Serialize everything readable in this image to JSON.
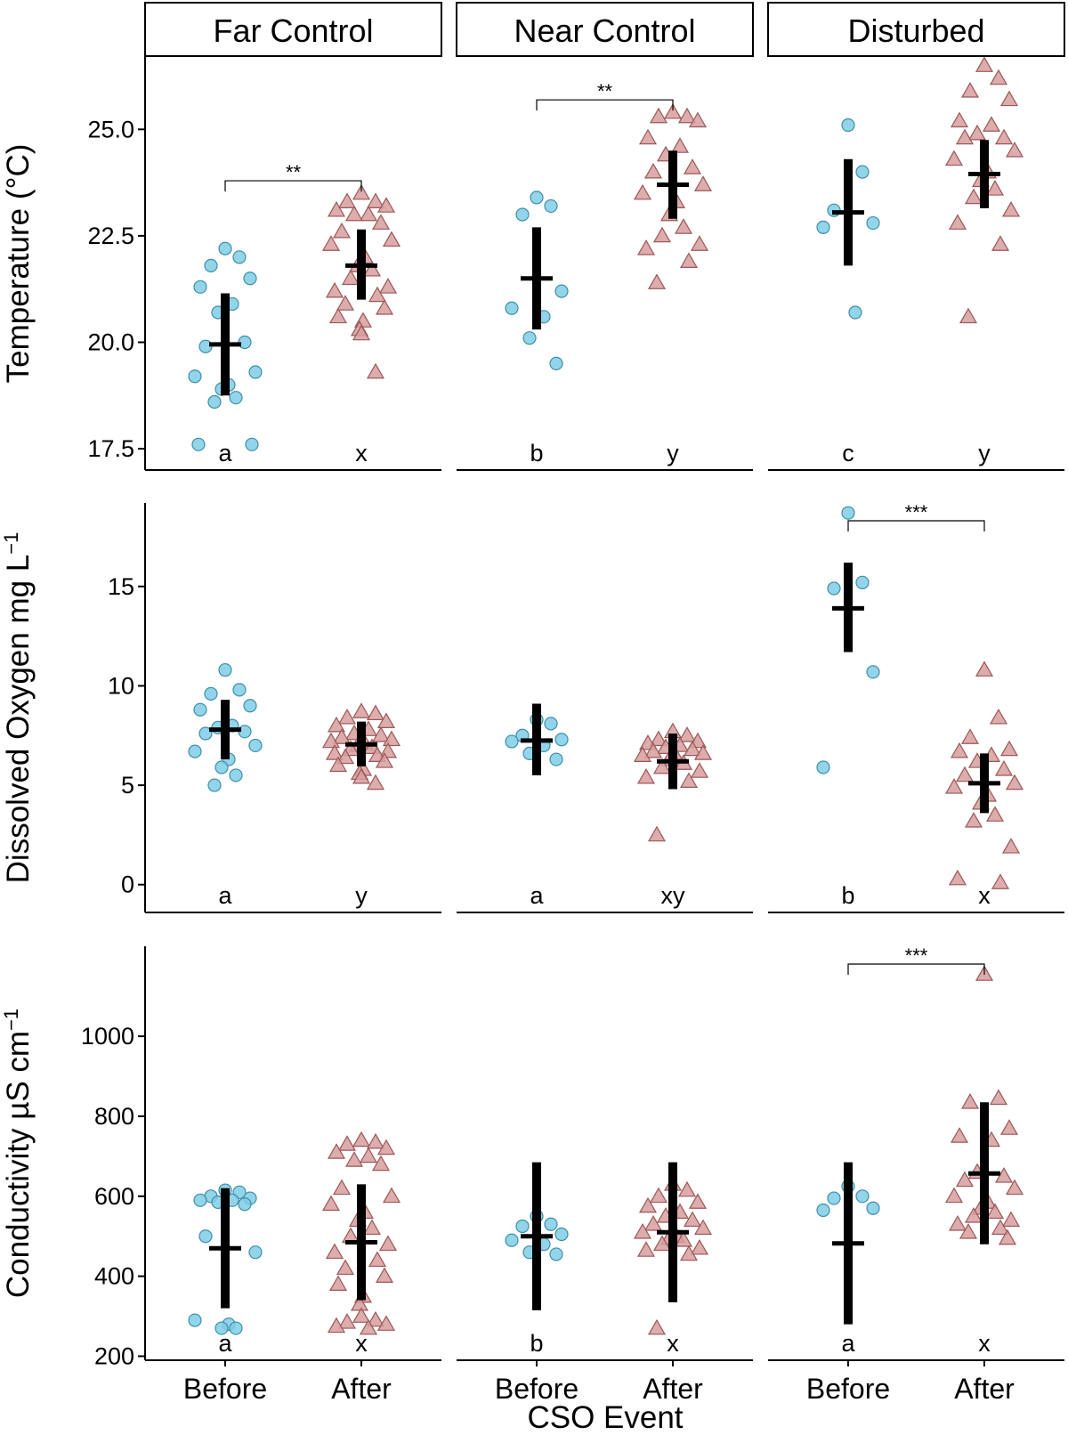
{
  "chart_data": {
    "type": "scatter",
    "xlabel": "CSO Event",
    "x_categories": [
      "Before",
      "After"
    ],
    "facets": [
      "Far Control",
      "Near Control",
      "Disturbed"
    ],
    "colors": {
      "before_fill": "#7fcce6",
      "before_stroke": "#3f8fa8",
      "after_fill": "#d79e9e",
      "after_stroke": "#9c5757",
      "summary": "#000000"
    },
    "markers": {
      "Before": "circle",
      "After": "triangle"
    },
    "rows": [
      {
        "ylabel_main": "Temperature (°C)",
        "ylim": [
          17.0,
          26.7
        ],
        "yticks": [
          "17.5",
          "20.0",
          "22.5",
          "25.0"
        ],
        "panels": [
          {
            "facet": "Far Control",
            "before": {
              "points": [
                22.2,
                22.0,
                21.8,
                21.5,
                21.3,
                20.9,
                20.7,
                20.0,
                19.9,
                19.3,
                19.2,
                19.0,
                18.9,
                18.7,
                18.6,
                17.6,
                17.6
              ],
              "mean": 19.95,
              "lower": 18.75,
              "upper": 21.15,
              "letter": "a"
            },
            "after": {
              "points": [
                23.5,
                23.3,
                23.3,
                23.2,
                23.1,
                23.0,
                23.0,
                22.8,
                22.6,
                22.4,
                22.3,
                22.0,
                21.8,
                21.7,
                21.5,
                21.3,
                21.2,
                21.1,
                20.9,
                20.8,
                20.6,
                20.5,
                20.3,
                20.2,
                19.3
              ],
              "mean": 21.8,
              "lower": 21.0,
              "upper": 22.65,
              "letter": "x"
            },
            "significance": "**"
          },
          {
            "facet": "Near Control",
            "before": {
              "points": [
                23.4,
                23.2,
                23.0,
                21.2,
                20.8,
                20.6,
                20.1,
                19.5
              ],
              "mean": 21.5,
              "lower": 20.3,
              "upper": 22.7,
              "letter": "b"
            },
            "after": {
              "points": [
                25.4,
                25.3,
                25.3,
                25.2,
                24.8,
                24.6,
                24.4,
                24.1,
                24.0,
                23.7,
                23.5,
                23.3,
                23.0,
                22.7,
                22.5,
                22.3,
                22.2,
                21.9,
                21.4
              ],
              "mean": 23.7,
              "lower": 22.9,
              "upper": 24.5,
              "letter": "y"
            },
            "significance": "**"
          },
          {
            "facet": "Disturbed",
            "before": {
              "points": [
                25.1,
                24.0,
                23.1,
                22.8,
                22.7,
                20.7
              ],
              "mean": 23.05,
              "lower": 21.8,
              "upper": 24.3,
              "letter": "c"
            },
            "after": {
              "points": [
                26.5,
                26.2,
                25.9,
                25.7,
                25.2,
                25.1,
                24.9,
                24.8,
                24.8,
                24.5,
                24.3,
                24.0,
                23.8,
                23.6,
                23.4,
                23.1,
                22.8,
                22.3,
                20.6
              ],
              "mean": 23.95,
              "lower": 23.15,
              "upper": 24.75,
              "letter": "y"
            },
            "significance": ""
          }
        ]
      },
      {
        "ylabel_main": "Dissolved Oxygen mg L",
        "ylabel_sup": "−1",
        "ylim": [
          -1.4,
          19.2
        ],
        "yticks": [
          "0",
          "5",
          "10",
          "15"
        ],
        "panels": [
          {
            "facet": "Far Control",
            "before": {
              "points": [
                10.8,
                9.8,
                9.6,
                9.0,
                8.8,
                8.0,
                7.9,
                7.7,
                7.6,
                7.0,
                6.7,
                6.3,
                5.9,
                5.5,
                5.0
              ],
              "mean": 7.8,
              "lower": 6.3,
              "upper": 9.3,
              "letter": "a"
            },
            "after": {
              "points": [
                8.7,
                8.6,
                8.4,
                8.2,
                8.0,
                7.8,
                7.6,
                7.5,
                7.4,
                7.3,
                7.2,
                7.1,
                7.0,
                6.9,
                6.8,
                6.7,
                6.6,
                6.5,
                6.4,
                6.2,
                6.0,
                5.8,
                5.6,
                5.4,
                5.1
              ],
              "mean": 7.05,
              "lower": 5.95,
              "upper": 8.2,
              "letter": "y"
            },
            "significance": ""
          },
          {
            "facet": "Near Control",
            "before": {
              "points": [
                8.3,
                8.1,
                7.5,
                7.3,
                7.2,
                7.0,
                6.6,
                6.3
              ],
              "mean": 7.25,
              "lower": 5.5,
              "upper": 9.1,
              "letter": "a"
            },
            "after": {
              "points": [
                7.7,
                7.5,
                7.3,
                7.2,
                7.1,
                7.0,
                6.9,
                6.8,
                6.7,
                6.6,
                6.5,
                6.4,
                6.3,
                6.1,
                5.9,
                5.7,
                5.4,
                5.2,
                2.5
              ],
              "mean": 6.2,
              "lower": 4.8,
              "upper": 7.6,
              "letter": "xy"
            },
            "significance": ""
          },
          {
            "facet": "Disturbed",
            "before": {
              "points": [
                18.7,
                15.2,
                14.9,
                10.7,
                5.9
              ],
              "mean": 13.9,
              "lower": 11.7,
              "upper": 16.2,
              "letter": "b"
            },
            "after": {
              "points": [
                10.8,
                8.4,
                7.4,
                6.8,
                6.7,
                6.5,
                6.2,
                5.8,
                5.5,
                5.1,
                4.9,
                4.5,
                4.1,
                3.5,
                3.2,
                1.9,
                0.3,
                0.1
              ],
              "mean": 5.1,
              "lower": 3.6,
              "upper": 6.6,
              "letter": "x"
            },
            "significance": "***"
          }
        ]
      },
      {
        "ylabel_main": "Conductivity µS cm",
        "ylabel_sup": "−1",
        "ylim": [
          190,
          1225
        ],
        "yticks": [
          "200",
          "400",
          "600",
          "800",
          "1000"
        ],
        "panels": [
          {
            "facet": "Far Control",
            "before": {
              "points": [
                615,
                610,
                600,
                595,
                590,
                590,
                585,
                580,
                500,
                460,
                290,
                280,
                270,
                270
              ],
              "mean": 470,
              "lower": 320,
              "upper": 620,
              "letter": "a"
            },
            "after": {
              "points": [
                740,
                735,
                730,
                720,
                710,
                700,
                690,
                680,
                620,
                600,
                580,
                560,
                540,
                520,
                500,
                480,
                460,
                440,
                420,
                400,
                380,
                350,
                330,
                300,
                290,
                285,
                280,
                275,
                270
              ],
              "mean": 485,
              "lower": 340,
              "upper": 630,
              "letter": "x"
            },
            "significance": ""
          },
          {
            "facet": "Near Control",
            "before": {
              "points": [
                550,
                530,
                525,
                505,
                490,
                480,
                460,
                455
              ],
              "mean": 500,
              "lower": 315,
              "upper": 685,
              "letter": "b"
            },
            "after": {
              "points": [
                630,
                615,
                600,
                585,
                575,
                560,
                550,
                540,
                530,
                520,
                510,
                500,
                495,
                490,
                480,
                470,
                465,
                455,
                270
              ],
              "mean": 510,
              "lower": 335,
              "upper": 685,
              "letter": "x"
            },
            "significance": ""
          },
          {
            "facet": "Disturbed",
            "before": {
              "points": [
                625,
                600,
                595,
                570,
                565
              ],
              "mean": 482,
              "lower": 280,
              "upper": 685,
              "letter": "a"
            },
            "after": {
              "points": [
                1155,
                845,
                835,
                770,
                750,
                740,
                660,
                650,
                640,
                620,
                600,
                585,
                570,
                560,
                550,
                540,
                530,
                520,
                510,
                495
              ],
              "mean": 657,
              "lower": 480,
              "upper": 835,
              "letter": "x"
            },
            "significance": "***"
          }
        ]
      }
    ]
  }
}
